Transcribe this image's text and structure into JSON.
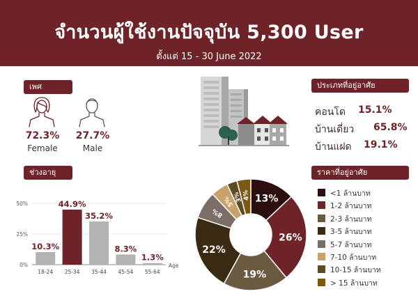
{
  "header": {
    "title": "จำนวนผู้ใช้งานปัจจุบัน 5,300 User",
    "subtitle": "ตั้งแต่ 15 - 30 June 2022"
  },
  "gender": {
    "tag": "เพศ",
    "female": {
      "pct": "72.3%",
      "label": "Female"
    },
    "male": {
      "pct": "27.7%",
      "label": "Male"
    }
  },
  "residence": {
    "tag": "ประเภทที่อยู่อาศัย",
    "items": [
      {
        "name": "คอนโด",
        "value": "15.1%"
      },
      {
        "name": "บ้านเดี่ยว",
        "value": "65.8%"
      },
      {
        "name": "บ้านแฝด",
        "value": "19.1%"
      }
    ]
  },
  "age": {
    "tag": "ช่วงอายุ"
  },
  "price": {
    "tag": "ราคาที่อยู่อาศัย"
  },
  "chart_data": [
    {
      "type": "bar",
      "categories": [
        "18-24",
        "25-34",
        "35-44",
        "45-54",
        "55-64"
      ],
      "values": [
        10.3,
        44.9,
        35.2,
        8.3,
        1.3
      ],
      "data_labels": [
        "10.3%",
        "44.9%",
        "35.2%",
        "8.3%",
        "1.3%"
      ],
      "ylim": [
        0,
        50
      ],
      "yticks": [
        "0%",
        "25%",
        "50%"
      ],
      "ytick_values": [
        0,
        25,
        50
      ],
      "xlabel": "Age",
      "highlight_index": 1,
      "colors": {
        "bar": "#b3b3b3",
        "highlight": "#6e2328"
      },
      "grid": true
    },
    {
      "type": "pie",
      "donut": true,
      "labels": [
        "<1 ล้านบาท",
        "1-2 ล้านบาท",
        "2-3 ล้านบาท",
        "3-5 ล้านบาท",
        "5-7 ล้านบาท",
        "7-10 ล้านบาท",
        "10-15 ล้านบาท",
        "> 15 ล้านบาท"
      ],
      "values": [
        13,
        26,
        19,
        22,
        8,
        5,
        3,
        4
      ],
      "data_labels": [
        "13%",
        "26%",
        "19%",
        "22%",
        "8%",
        "5%",
        "3%",
        "4%"
      ],
      "colors": [
        "#2e0f0f",
        "#6e2328",
        "#6b5a3f",
        "#3a2a12",
        "#7a6e66",
        "#c9a16a",
        "#5e4b22",
        "#7a5a12"
      ],
      "legend_position": "right"
    }
  ]
}
